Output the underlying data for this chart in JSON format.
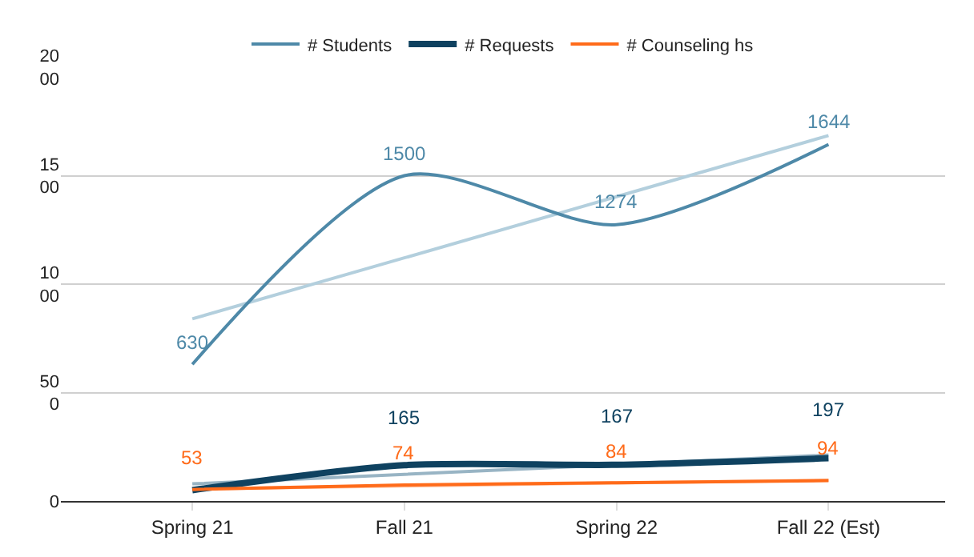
{
  "chart_data": {
    "type": "line",
    "categories": [
      "Spring 21",
      "Fall 21",
      "Spring 22",
      "Fall 22 (Est)"
    ],
    "ylim": [
      0,
      2000
    ],
    "yticks": [
      0,
      500,
      1000,
      1500,
      2000
    ],
    "grid": "y",
    "legend": "top",
    "marker": "none",
    "line_style": "solid",
    "series": [
      {
        "name": "# Students",
        "color": "#4e89a8",
        "values": [
          630,
          1500,
          1274,
          1644
        ],
        "value_labels": [
          "630",
          "1500",
          "1274",
          "1644"
        ]
      },
      {
        "name": "# Requests",
        "color": "#0f4260",
        "values": [
          50,
          165,
          167,
          197
        ],
        "value_labels": [
          null,
          "165",
          "167",
          "197"
        ]
      },
      {
        "name": "# Counseling hs",
        "color": "#ff6b1a",
        "values": [
          53,
          74,
          84,
          94
        ],
        "value_labels": [
          "53",
          "74",
          "84",
          "94"
        ]
      },
      {
        "type": "line",
        "color": "#b3cfdd",
        "values": [
          840,
          1121,
          1403,
          1685
        ]
      },
      {
        "type": "line",
        "color": "#98b4c4",
        "values": [
          79,
          123,
          167,
          212
        ]
      },
      {
        "type": "line",
        "color": "#ffc3a3",
        "values": [
          56,
          69,
          83,
          96
        ]
      }
    ]
  }
}
